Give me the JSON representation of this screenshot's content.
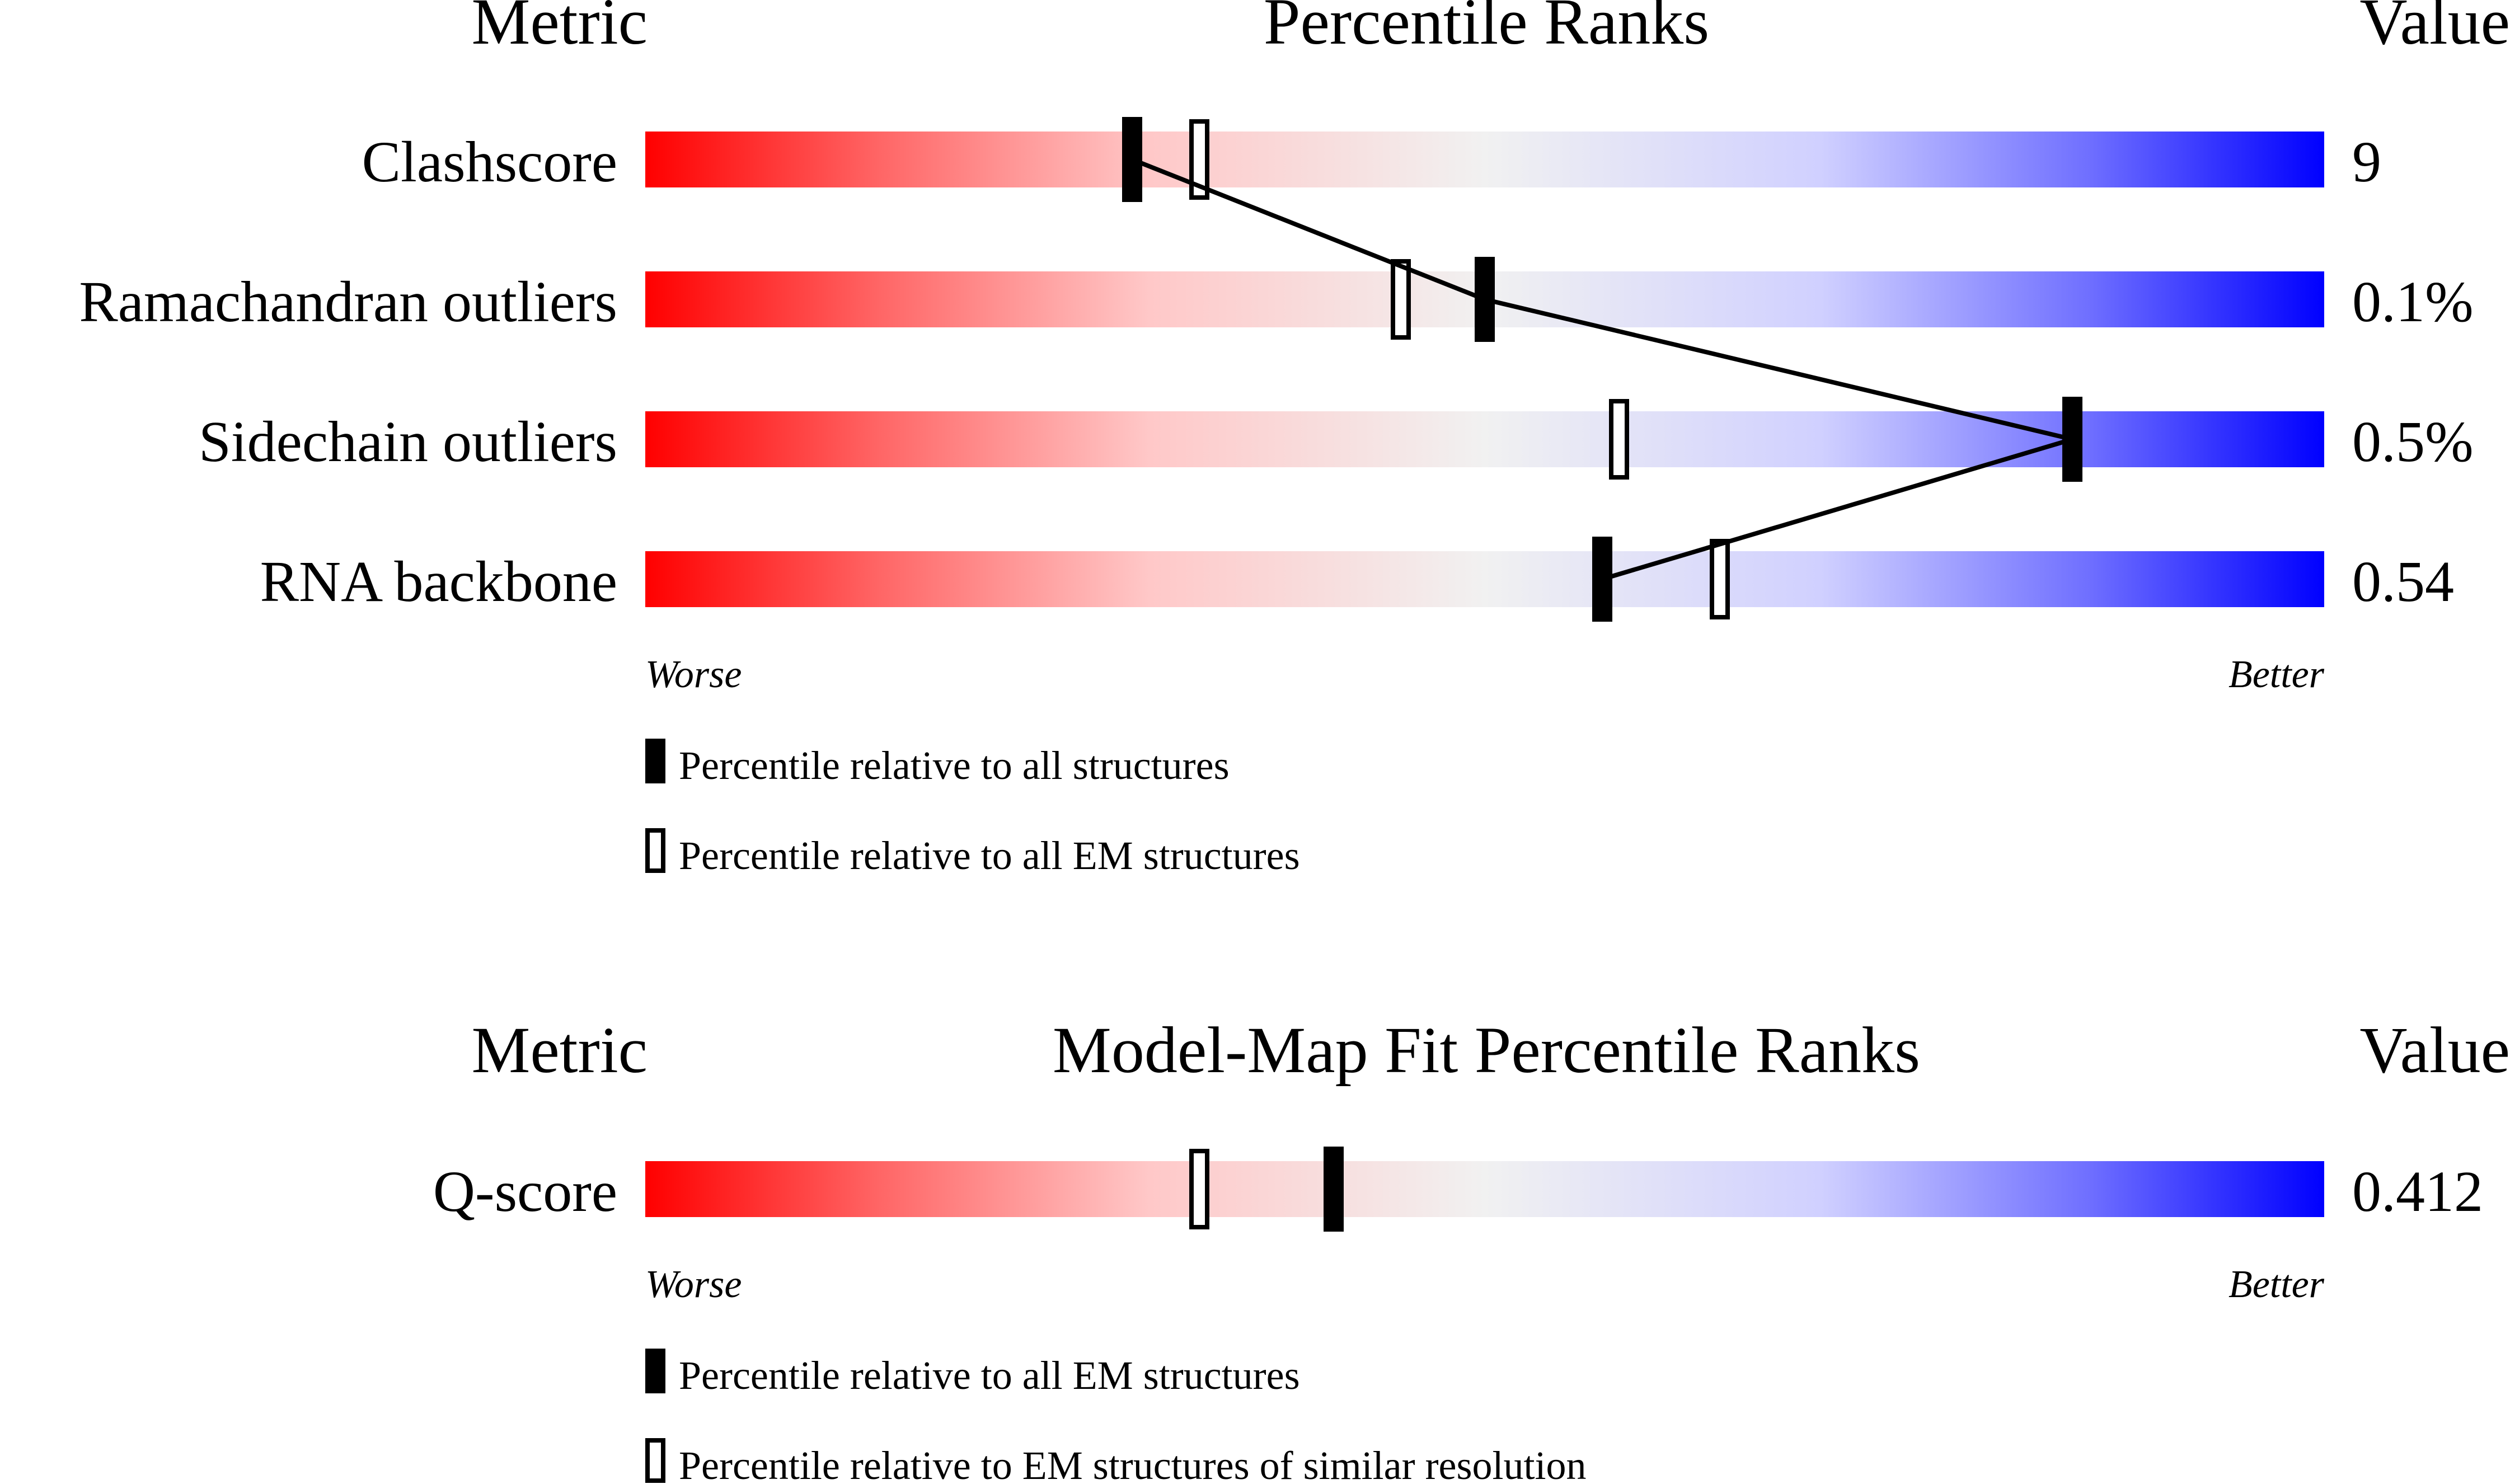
{
  "chart_data": [
    {
      "type": "bar",
      "header": {
        "metric": "Metric",
        "title": "Percentile Ranks",
        "value": "Value"
      },
      "metrics": [
        {
          "name": "Clashscore",
          "value": "9",
          "percentile_all": 29,
          "percentile_em": 33
        },
        {
          "name": "Ramachandran outliers",
          "value": "0.1%",
          "percentile_all": 50,
          "percentile_em": 45
        },
        {
          "name": "Sidechain outliers",
          "value": "0.5%",
          "percentile_all": 85,
          "percentile_em": 58
        },
        {
          "name": "RNA backbone",
          "value": "0.54",
          "percentile_all": 57,
          "percentile_em": 64
        }
      ],
      "xlim": [
        0,
        100
      ],
      "axis": {
        "worse": "Worse",
        "better": "Better"
      },
      "legend": [
        {
          "marker": "filled",
          "label": "Percentile relative to all structures"
        },
        {
          "marker": "open",
          "label": "Percentile relative to all EM structures"
        }
      ],
      "connect_filled_markers": true,
      "gradient_colors": [
        "#ff0000",
        "#f1f1f1",
        "#0000ff"
      ]
    },
    {
      "type": "bar",
      "header": {
        "metric": "Metric",
        "title": "Model-Map Fit Percentile Ranks",
        "value": "Value"
      },
      "metrics": [
        {
          "name": "Q-score",
          "value": "0.412",
          "percentile_all": 41,
          "percentile_em": 33
        }
      ],
      "xlim": [
        0,
        100
      ],
      "axis": {
        "worse": "Worse",
        "better": "Better"
      },
      "legend": [
        {
          "marker": "filled",
          "label": "Percentile relative to all EM structures"
        },
        {
          "marker": "open",
          "label": "Percentile relative to EM structures of similar resolution"
        }
      ],
      "connect_filled_markers": false,
      "gradient_colors": [
        "#ff0000",
        "#f1f1f1",
        "#0000ff"
      ]
    }
  ]
}
